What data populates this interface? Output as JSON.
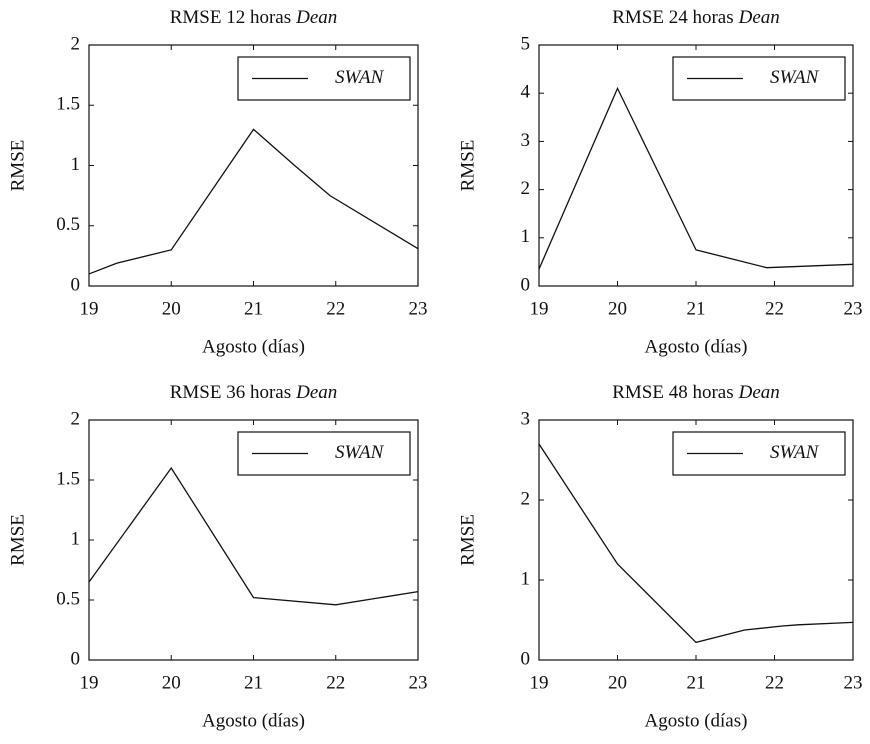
{
  "chart_data": [
    {
      "type": "line",
      "title": "RMSE 12 horas",
      "title_italic": "Dean",
      "x_label": "Agosto (días)",
      "y_label": "RMSE",
      "xlim": [
        19,
        23
      ],
      "xticks": [
        19,
        20,
        21,
        22,
        23
      ],
      "ylim": [
        0,
        2
      ],
      "yticks": [
        0,
        0.5,
        1,
        1.5,
        2
      ],
      "legend": "upper right",
      "series": [
        {
          "name": "SWAN",
          "color": "#111111",
          "x": [
            19,
            19.34,
            20,
            21,
            21.5,
            21.93,
            23
          ],
          "values": [
            0.1,
            0.19,
            0.3,
            1.3,
            1.0,
            0.75,
            0.31
          ]
        }
      ]
    },
    {
      "type": "line",
      "title": "RMSE 24 horas",
      "title_italic": "Dean",
      "x_label": "Agosto (días)",
      "y_label": "RMSE",
      "xlim": [
        19,
        23
      ],
      "xticks": [
        19,
        20,
        21,
        22,
        23
      ],
      "ylim": [
        0,
        5
      ],
      "yticks": [
        0,
        1,
        2,
        3,
        4,
        5
      ],
      "legend": "upper right",
      "series": [
        {
          "name": "SWAN",
          "color": "#111111",
          "x": [
            19,
            20,
            21,
            21.9,
            23
          ],
          "values": [
            0.35,
            4.1,
            0.75,
            0.38,
            0.45
          ]
        }
      ]
    },
    {
      "type": "line",
      "title": "RMSE 36 horas",
      "title_italic": "Dean",
      "x_label": "Agosto (días)",
      "y_label": "RMSE",
      "xlim": [
        19,
        23
      ],
      "xticks": [
        19,
        20,
        21,
        22,
        23
      ],
      "ylim": [
        0,
        2
      ],
      "yticks": [
        0,
        0.5,
        1,
        1.5,
        2
      ],
      "legend": "upper right",
      "series": [
        {
          "name": "SWAN",
          "color": "#111111",
          "x": [
            19,
            20,
            21,
            22,
            23
          ],
          "values": [
            0.65,
            1.6,
            0.52,
            0.46,
            0.57
          ]
        }
      ]
    },
    {
      "type": "line",
      "title": "RMSE 48 horas",
      "title_italic": "Dean",
      "x_label": "Agosto (días)",
      "y_label": "RMSE",
      "xlim": [
        19,
        23
      ],
      "xticks": [
        19,
        20,
        21,
        22,
        23
      ],
      "ylim": [
        0,
        3
      ],
      "yticks": [
        0,
        1,
        2,
        3
      ],
      "legend": "upper right",
      "series": [
        {
          "name": "SWAN",
          "color": "#111111",
          "x": [
            19,
            20,
            21,
            21.62,
            22.1,
            22.3,
            23
          ],
          "values": [
            2.7,
            1.2,
            0.22,
            0.375,
            0.425,
            0.44,
            0.47
          ]
        }
      ]
    }
  ]
}
